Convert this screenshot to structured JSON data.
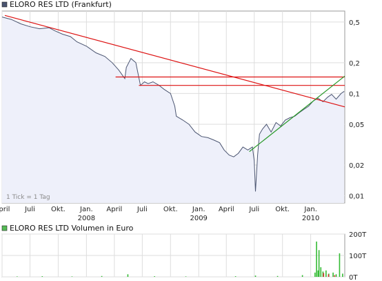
{
  "colors": {
    "price_line": "#4a5470",
    "price_fill": "#eef0fa",
    "resistance": "#dd1111",
    "support": "#2a9a2a",
    "volume": "#33bb33",
    "volume_spike": "#dd3333",
    "legend_main": "#4a5470",
    "legend_volume": "#55bb55"
  },
  "chart_data": [
    {
      "type": "line",
      "title": "ELORO RES LTD (Frankfurt)",
      "note": "1 Tick = 1 Tag",
      "scale": "log",
      "ylim": [
        0.0085,
        0.64
      ],
      "y_ticks": [
        0.5,
        0.2,
        0.1,
        0.05,
        0.02,
        0.01
      ],
      "y_tick_labels": [
        "0,5",
        "0,2",
        "0,1",
        "0,05",
        "0,02",
        "0,01"
      ],
      "x_start": "2007-04-01",
      "x_end": "2010-04-22",
      "x_ticks": [
        {
          "label": "April",
          "date": "2007-04-01"
        },
        {
          "label": "Juli",
          "date": "2007-07-01"
        },
        {
          "label": "Okt.",
          "date": "2007-10-01"
        },
        {
          "label": "Jan.",
          "sub": "2008",
          "date": "2008-01-01"
        },
        {
          "label": "April",
          "date": "2008-04-01"
        },
        {
          "label": "Juli",
          "date": "2008-07-01"
        },
        {
          "label": "Okt.",
          "date": "2008-10-01"
        },
        {
          "label": "Jan.",
          "sub": "2009",
          "date": "2009-01-01"
        },
        {
          "label": "April",
          "date": "2009-04-01"
        },
        {
          "label": "Juli",
          "date": "2009-07-01"
        },
        {
          "label": "Okt.",
          "date": "2009-10-01"
        },
        {
          "label": "Jan.",
          "sub": "2010",
          "date": "2010-01-01"
        }
      ],
      "grid": true,
      "series": [
        {
          "type": "area",
          "x": [
            "2007-04-01",
            "2007-05-01",
            "2007-06-01",
            "2007-07-01",
            "2007-08-01",
            "2007-09-01",
            "2007-09-20",
            "2007-10-15",
            "2007-11-10",
            "2007-12-01",
            "2008-01-01",
            "2008-02-01",
            "2008-03-01",
            "2008-03-25",
            "2008-04-15",
            "2008-05-05",
            "2008-05-10",
            "2008-05-25",
            "2008-06-10",
            "2008-06-25",
            "2008-07-08",
            "2008-07-20",
            "2008-08-05",
            "2008-08-25",
            "2008-09-10",
            "2008-10-01",
            "2008-10-15",
            "2008-10-20",
            "2008-11-10",
            "2008-11-30",
            "2008-12-20",
            "2009-01-10",
            "2009-01-31",
            "2009-02-20",
            "2009-03-10",
            "2009-03-25",
            "2009-04-10",
            "2009-04-25",
            "2009-05-10",
            "2009-05-25",
            "2009-06-10",
            "2009-06-25",
            "2009-07-01",
            "2009-07-05",
            "2009-07-12",
            "2009-07-18",
            "2009-07-28",
            "2009-08-10",
            "2009-08-25",
            "2009-09-10",
            "2009-09-25",
            "2009-10-10",
            "2009-10-25",
            "2009-11-10",
            "2009-11-25",
            "2009-12-10",
            "2009-12-25",
            "2010-01-10",
            "2010-01-25",
            "2010-02-10",
            "2010-02-25",
            "2010-03-10",
            "2010-03-25",
            "2010-04-10",
            "2010-04-20"
          ],
          "y": [
            0.56,
            0.53,
            0.48,
            0.45,
            0.43,
            0.44,
            0.41,
            0.38,
            0.36,
            0.32,
            0.29,
            0.25,
            0.23,
            0.2,
            0.17,
            0.14,
            0.18,
            0.22,
            0.2,
            0.12,
            0.13,
            0.125,
            0.13,
            0.12,
            0.11,
            0.1,
            0.075,
            0.06,
            0.055,
            0.05,
            0.042,
            0.038,
            0.037,
            0.035,
            0.033,
            0.028,
            0.025,
            0.024,
            0.026,
            0.03,
            0.028,
            0.03,
            0.022,
            0.011,
            0.025,
            0.04,
            0.045,
            0.05,
            0.042,
            0.052,
            0.048,
            0.055,
            0.058,
            0.06,
            0.065,
            0.07,
            0.075,
            0.085,
            0.09,
            0.083,
            0.092,
            0.098,
            0.088,
            0.1,
            0.105
          ]
        },
        {
          "type": "trendline",
          "color": "resistance",
          "x": [
            "2007-04-10",
            "2010-04-22"
          ],
          "y": [
            0.58,
            0.074
          ]
        },
        {
          "type": "trendline",
          "color": "resistance",
          "x": [
            "2008-04-05",
            "2010-04-22"
          ],
          "y": [
            0.145,
            0.145
          ]
        },
        {
          "type": "trendline",
          "color": "resistance",
          "x": [
            "2008-06-20",
            "2010-04-22"
          ],
          "y": [
            0.12,
            0.12
          ]
        },
        {
          "type": "trendline",
          "color": "support",
          "x": [
            "2009-06-15",
            "2010-04-22"
          ],
          "y": [
            0.027,
            0.148
          ]
        }
      ]
    },
    {
      "type": "bar",
      "title": "ELORO RES LTD Volumen in Euro",
      "ylim": [
        0,
        200
      ],
      "y_ticks": [
        0,
        100,
        200
      ],
      "y_tick_labels": [
        "0T",
        "100T",
        "200T"
      ],
      "values": [
        {
          "date": "2007-05-20",
          "value": 2
        },
        {
          "date": "2007-08-10",
          "value": 3
        },
        {
          "date": "2007-11-15",
          "value": 2
        },
        {
          "date": "2008-02-20",
          "value": 4
        },
        {
          "date": "2008-05-15",
          "value": 12
        },
        {
          "date": "2008-08-10",
          "value": 3
        },
        {
          "date": "2008-11-20",
          "value": 2
        },
        {
          "date": "2009-05-01",
          "value": 3
        },
        {
          "date": "2009-07-05",
          "value": 6
        },
        {
          "date": "2009-09-15",
          "value": 4
        },
        {
          "date": "2009-12-05",
          "value": 8
        },
        {
          "date": "2010-01-15",
          "value": 20
        },
        {
          "date": "2010-01-20",
          "value": 165
        },
        {
          "date": "2010-01-25",
          "value": 30
        },
        {
          "date": "2010-01-28",
          "value": 125
        },
        {
          "date": "2010-02-03",
          "value": 45
        },
        {
          "date": "2010-02-10",
          "value": 25
        },
        {
          "date": "2010-02-20",
          "value": 30
        },
        {
          "date": "2010-03-01",
          "value": 15
        },
        {
          "date": "2010-03-15",
          "value": 20
        },
        {
          "date": "2010-03-25",
          "value": 12
        },
        {
          "date": "2010-04-05",
          "value": 110
        },
        {
          "date": "2010-04-15",
          "value": 15
        }
      ],
      "spikes": [
        {
          "date": "2010-02-12",
          "value": 18
        },
        {
          "date": "2010-02-28",
          "value": 12
        },
        {
          "date": "2010-03-20",
          "value": 8
        }
      ]
    }
  ]
}
